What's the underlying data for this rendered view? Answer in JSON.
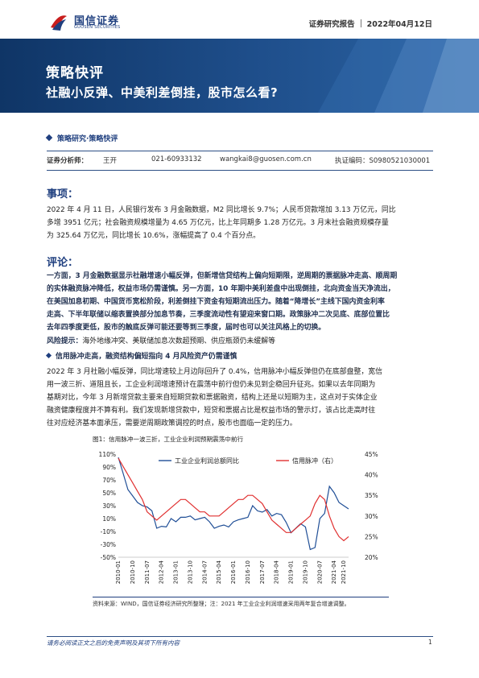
{
  "header": {
    "logo_cn": "国信证券",
    "logo_en": "GUOSEN SECURITIES",
    "report_type": "证券研究报告",
    "date": "2022年04月12日"
  },
  "banner": {
    "title": "策略快评",
    "subtitle": "社融小反弹、中美利差倒挂，股市怎么看?"
  },
  "breadcrumb": "策略研究·策略快评",
  "analyst": {
    "role": "证券分析师：",
    "name": "王开",
    "phone": "021-60933132",
    "email": "wangkai8@guosen.com.cn",
    "cert": "执证编码：S0980521030001"
  },
  "events": {
    "heading": "事项：",
    "lines": [
      "2022 年 4 月 11 日，人民银行发布 3 月金融数据，M2 同比增长 9.7%；人民币贷款增加 3.13 万亿元，同比",
      "多增 3951 亿元；社会融资规模增量为 4.65 万亿元，比上年同期多 1.28 万亿元。3 月末社会融资规模存量",
      "为 325.64 万亿元，同比增长 10.6%，涨幅提高了 0.4 个百分点。"
    ]
  },
  "comment": {
    "heading": "评论：",
    "summary_lines": [
      "一方面，3 月金融数据显示社融增速小幅反弹，但新增信贷结构上偏向短期限，逆周期的票据脉冲走高、顺周期",
      "的实体融资脉冲降低，权益市场仍需谨慎。另一方面，10 年期中美利差盘中出现倒挂，北向资金当天净流出，",
      "在美国加息初期、中国货币宽松阶段，利差倒挂下资金有短期流出压力。随着“降增长”主线下国内资金利率",
      "走高、下半年联储以缩表置换部分加息节奏，三季度流动性有望迎来窗口期。政策脉冲二次见底、底部位置比",
      "去年四季度更低，股市的触底反弹可能还要等到三季度，届时也可以关注风格上的切换。"
    ],
    "risk_label": "风险提示：",
    "risk_text": "海外地缘冲突、美联储加息次数超预期、供应瓶颈仍未缓解等",
    "bullet": "信用脉冲走高，融资结构偏短指向 4 月风险资产仍需谨慎",
    "body_lines": [
      "2022 年 3 月社融小幅反弹，同比增速较上月边际回升了 0.4%，信用脉冲小幅反弹但仍在底部盘整，宽信",
      "用一波三折、道阻且长，工企业利润增速预计在震荡中前行但仍未见到企稳回升征兆。如果以去年同期为",
      "基期对比，今年 3 月新增贷款主要来自短期贷款和票据融资，结构上还是以短期为主，这点对于实体企业",
      "融资健康程度并不算有利。我们发现新增贷款中，短贷和票据占比是权益市场的警示灯，该占比走高时往",
      "往对应经济基本面承压，需要逆周期政策调控的时点，股市也面临一定的压力。"
    ]
  },
  "chart": {
    "caption": "图1：信用脉冲一波三折，工业企业利润预期震荡中前行",
    "source": "资料来源：WIND，国信证券经济研究所整理；注：2021 年工业企业利润增速采用两年复合增速调整。",
    "colors": {
      "left_series": "#1f4e96",
      "right_series": "#e03030"
    }
  },
  "chart_data": {
    "type": "line",
    "title": "",
    "x": [
      "2010-01",
      "2010-04",
      "2010-07",
      "2010-10",
      "2011-01",
      "2011-04",
      "2011-07",
      "2011-10",
      "2012-01",
      "2012-04",
      "2012-07",
      "2012-10",
      "2013-01",
      "2013-04",
      "2013-07",
      "2013-10",
      "2014-01",
      "2014-04",
      "2014-07",
      "2014-10",
      "2015-01",
      "2015-04",
      "2015-07",
      "2015-10",
      "2016-01",
      "2016-04",
      "2016-07",
      "2016-10",
      "2017-01",
      "2017-04",
      "2017-07",
      "2017-10",
      "2018-01",
      "2018-04",
      "2018-07",
      "2018-10",
      "2019-01",
      "2019-04",
      "2019-07",
      "2019-10",
      "2020-01",
      "2020-04",
      "2020-07",
      "2020-10",
      "2021-01",
      "2021-04",
      "2021-07",
      "2021-10",
      "2022-01"
    ],
    "x_tick_labels": [
      "2010-01",
      "2010-10",
      "2011-07",
      "2012-04",
      "2013-01",
      "2013-10",
      "2014-07",
      "2015-04",
      "2016-01",
      "2016-10",
      "2017-07",
      "2018-04",
      "2019-01",
      "2019-10",
      "2020-07",
      "2021-04",
      "2021-10"
    ],
    "series": [
      {
        "name": "工业企业利润总额同比",
        "axis": "left",
        "values": [
          105,
          80,
          55,
          45,
          35,
          30,
          28,
          22,
          -5,
          -2,
          -3,
          10,
          5,
          12,
          12,
          14,
          8,
          10,
          12,
          5,
          -5,
          -2,
          0,
          -3,
          5,
          8,
          10,
          12,
          30,
          22,
          20,
          24,
          14,
          18,
          16,
          4,
          -12,
          -5,
          2,
          -3,
          -38,
          -35,
          10,
          18,
          60,
          50,
          35,
          30,
          25
        ]
      },
      {
        "name": "信用脉冲（右）",
        "axis": "right",
        "values": [
          44,
          42,
          40,
          38,
          36,
          34,
          31,
          30,
          29,
          30,
          31,
          32,
          33,
          34,
          34,
          33,
          32,
          31,
          31,
          30,
          30,
          30,
          31,
          32,
          33,
          34,
          34,
          35,
          35,
          34,
          33,
          31,
          29,
          28,
          27,
          26,
          26,
          27,
          28,
          29,
          30,
          33,
          35,
          34,
          30,
          27,
          25,
          24,
          25
        ]
      }
    ],
    "y_left": {
      "ticks": [
        "110%",
        "90%",
        "70%",
        "50%",
        "30%",
        "10%",
        "-10%",
        "-30%",
        "-50%"
      ],
      "range": [
        -50,
        110
      ]
    },
    "y_right": {
      "ticks": [
        "45%",
        "40%",
        "35%",
        "30%",
        "25%",
        "20%"
      ],
      "range": [
        20,
        45
      ]
    },
    "legend": "top-center"
  },
  "footer": {
    "note": "请务必阅读正文之后的免责声明及其项下所有内容",
    "page": "1"
  }
}
